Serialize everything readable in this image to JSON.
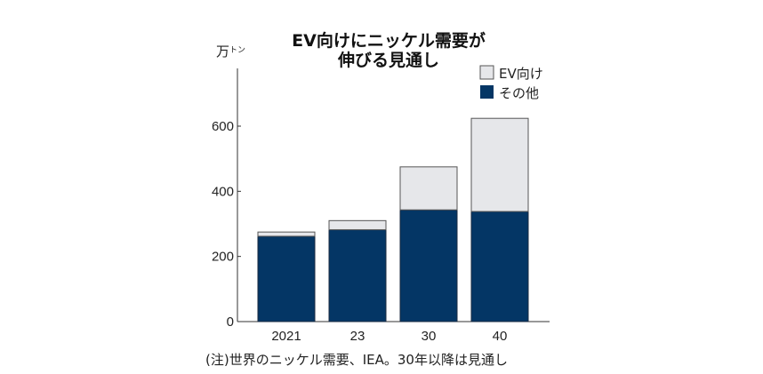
{
  "chart_data": {
    "type": "bar",
    "stacked": true,
    "title_lines": [
      "EV向けにニッケル需要が",
      "伸びる見通し"
    ],
    "unit": "万トン",
    "unit_main": "万",
    "unit_small": "トン",
    "categories": [
      "2021",
      "23",
      "30",
      "40"
    ],
    "series": [
      {
        "name": "その他",
        "values": [
          262,
          282,
          343,
          338
        ],
        "color": "#043665"
      },
      {
        "name": "EV向け",
        "values": [
          13,
          28,
          132,
          286
        ],
        "color": "#e6e7ea"
      }
    ],
    "ylim": [
      0,
      700
    ],
    "yticks": [
      0,
      200,
      400,
      600
    ],
    "legend_placement": "top-right",
    "grid": false,
    "note": "(注)世界のニッケル需要、IEA。30年以降は見通し"
  }
}
